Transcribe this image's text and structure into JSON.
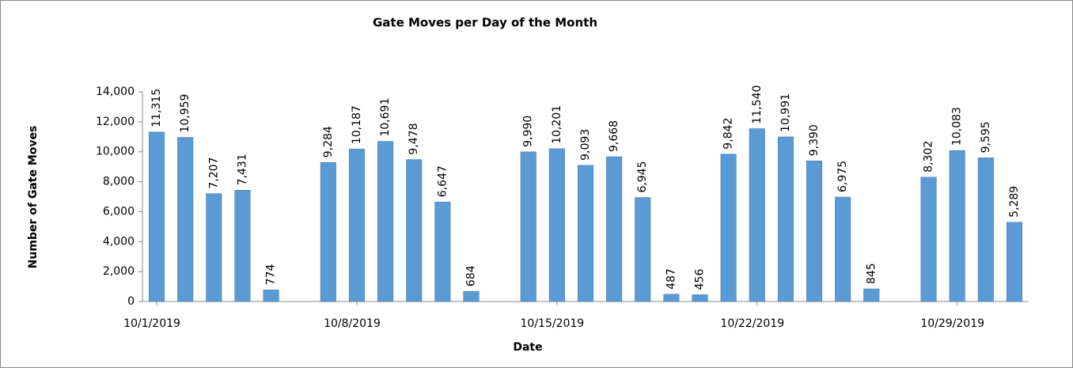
{
  "chart_data": {
    "type": "bar",
    "title": "Gate Moves per Day of the Month",
    "x_label": "Date",
    "y_label": "Number of Gate Moves",
    "categories": [
      "10/1/2019",
      null,
      null,
      null,
      null,
      null,
      null,
      "10/8/2019",
      null,
      null,
      null,
      null,
      null,
      null,
      "10/15/2019",
      null,
      null,
      null,
      null,
      null,
      null,
      "10/22/2019",
      null,
      null,
      null,
      null,
      null,
      null,
      "10/29/2019",
      null,
      null
    ],
    "values": [
      11315,
      10959,
      7207,
      7431,
      774,
      null,
      9284,
      10187,
      10691,
      9478,
      6647,
      684,
      null,
      9990,
      10201,
      9093,
      9668,
      6945,
      487,
      456,
      9842,
      11540,
      10991,
      9390,
      6975,
      845,
      null,
      8302,
      10083,
      9595,
      5289
    ],
    "value_labels": [
      "11,315",
      "10,959",
      "7,207",
      "7,431",
      "774",
      null,
      "9,284",
      "10,187",
      "10,691",
      "9,478",
      "6,647",
      "684",
      null,
      "9,990",
      "10,201",
      "9,093",
      "9,668",
      "6,945",
      "487",
      "456",
      "9,842",
      "11,540",
      "10,991",
      "9,390",
      "6,975",
      "845",
      null,
      "8,302",
      "10,083",
      "9,595",
      "5,289"
    ],
    "color": "#5b9bd5",
    "ylim": [
      0,
      14000
    ],
    "yticks": [
      0,
      {
        "value": 2000,
        "label": "2,000"
      },
      {
        "value": 4000,
        "label": "4,000"
      },
      {
        "value": 6000,
        "label": "6,000"
      },
      {
        "value": 8000,
        "label": "8,000"
      },
      {
        "value": 10000,
        "label": "10,000"
      },
      {
        "value": 12000,
        "label": "12,000"
      },
      {
        "value": 14000,
        "label": "14,000"
      }
    ],
    "grid": false
  }
}
